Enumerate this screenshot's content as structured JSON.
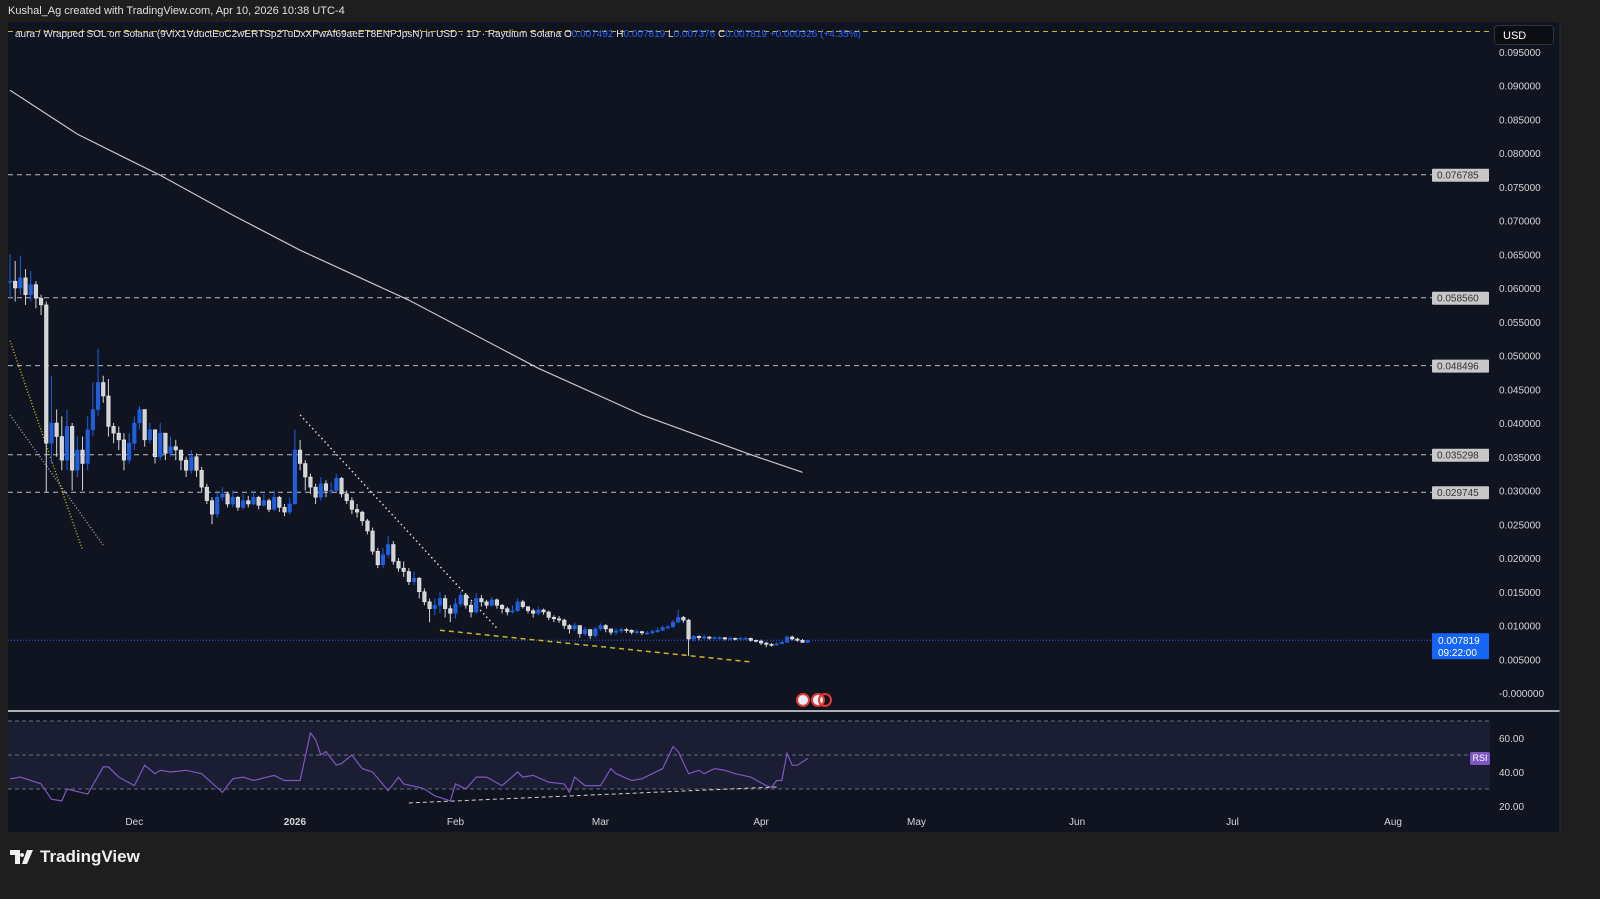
{
  "header": {
    "attribution": "Kushal_Ag created with TradingView.com, Apr 10, 2026 10:38 UTC-4"
  },
  "legend": {
    "symbol": "aura / Wrapped SOL on Solana (9ViX1VductEoC2wERTSp2TuDxXPwAf69aeET8ENPJpsN) in USD · 1D · Raydium Solana",
    "o_label": "O",
    "o": "0.007492",
    "h_label": "H",
    "h": "0.007819",
    "l_label": "L",
    "l": "0.007376",
    "c_label": "C",
    "c": "0.007819",
    "change": "+0.000326 (+4.35%)"
  },
  "currency_button": "USD",
  "footer": {
    "brand": "TradingView"
  },
  "colors": {
    "background": "#0f1420",
    "up": "#1e5fe0",
    "down": "#d4d4d4",
    "rsi": "#7e57c2",
    "accent": "#2962ff",
    "yellow": "#c9b52a"
  },
  "chart_data": {
    "type": "candlestick",
    "timeframe": "1D",
    "first_candle_date": "2025-11-07",
    "close": [
      0.061,
      0.06,
      0.0615,
      0.059,
      0.0605,
      0.0585,
      0.0575,
      0.037,
      0.04,
      0.038,
      0.0345,
      0.0395,
      0.033,
      0.036,
      0.034,
      0.039,
      0.042,
      0.046,
      0.044,
      0.0395,
      0.0385,
      0.0375,
      0.0345,
      0.037,
      0.04,
      0.042,
      0.0375,
      0.039,
      0.035,
      0.0385,
      0.0355,
      0.0365,
      0.036,
      0.0345,
      0.033,
      0.035,
      0.033,
      0.0305,
      0.0285,
      0.0265,
      0.029,
      0.0295,
      0.028,
      0.029,
      0.0275,
      0.0285,
      0.028,
      0.029,
      0.0278,
      0.0285,
      0.0272,
      0.029,
      0.0275,
      0.0268,
      0.028,
      0.036,
      0.034,
      0.032,
      0.0305,
      0.029,
      0.031,
      0.03,
      0.03,
      0.0318,
      0.0295,
      0.0285,
      0.0272,
      0.0268,
      0.0255,
      0.024,
      0.021,
      0.019,
      0.0205,
      0.022,
      0.0195,
      0.0185,
      0.018,
      0.0165,
      0.017,
      0.015,
      0.0135,
      0.0125,
      0.013,
      0.014,
      0.0125,
      0.0118,
      0.0132,
      0.0145,
      0.013,
      0.012,
      0.014,
      0.0135,
      0.013,
      0.0138,
      0.013,
      0.0125,
      0.012,
      0.0122,
      0.0135,
      0.0128,
      0.0122,
      0.0118,
      0.0123,
      0.012,
      0.0112,
      0.011,
      0.0108,
      0.01,
      0.0095,
      0.01,
      0.0088,
      0.0094,
      0.0085,
      0.0095,
      0.01,
      0.0095,
      0.009,
      0.0092,
      0.0094,
      0.0093,
      0.009,
      0.0091,
      0.0089,
      0.0089,
      0.0091,
      0.0093,
      0.0097,
      0.0098,
      0.0105,
      0.0112,
      0.0108,
      0.008,
      0.0084,
      0.0082,
      0.0083,
      0.0081,
      0.0082,
      0.0082,
      0.008,
      0.0081,
      0.008,
      0.0081,
      0.0081,
      0.0078,
      0.0077,
      0.0074,
      0.0072,
      0.0071,
      0.0073,
      0.0075,
      0.0083,
      0.008,
      0.0078,
      0.0075,
      0.007819
    ],
    "high": [
      0.065,
      0.064,
      0.0648,
      0.0628,
      0.0625,
      0.061,
      0.059,
      0.058,
      0.047,
      0.042,
      0.041,
      0.042,
      0.04,
      0.038,
      0.038,
      0.041,
      0.046,
      0.051,
      0.047,
      0.0465,
      0.04,
      0.0395,
      0.0385,
      0.0385,
      0.041,
      0.0425,
      0.042,
      0.04,
      0.039,
      0.04,
      0.0385,
      0.038,
      0.0375,
      0.036,
      0.035,
      0.036,
      0.0355,
      0.0335,
      0.031,
      0.029,
      0.03,
      0.0305,
      0.0298,
      0.03,
      0.0292,
      0.0295,
      0.0292,
      0.03,
      0.0292,
      0.0295,
      0.0288,
      0.03,
      0.0292,
      0.028,
      0.029,
      0.039,
      0.0375,
      0.0345,
      0.0325,
      0.031,
      0.032,
      0.0315,
      0.0312,
      0.0325,
      0.032,
      0.03,
      0.029,
      0.028,
      0.027,
      0.0258,
      0.0245,
      0.0215,
      0.0215,
      0.0232,
      0.0225,
      0.02,
      0.0195,
      0.0185,
      0.018,
      0.0172,
      0.0155,
      0.014,
      0.014,
      0.015,
      0.0145,
      0.013,
      0.014,
      0.015,
      0.0148,
      0.0135,
      0.0148,
      0.0145,
      0.0138,
      0.0142,
      0.014,
      0.0132,
      0.0128,
      0.013,
      0.014,
      0.0138,
      0.0128,
      0.0125,
      0.0128,
      0.0125,
      0.0122,
      0.0115,
      0.0114,
      0.011,
      0.0102,
      0.0104,
      0.01,
      0.0098,
      0.0095,
      0.0098,
      0.0103,
      0.0102,
      0.0095,
      0.0096,
      0.0097,
      0.0096,
      0.0094,
      0.0094,
      0.0092,
      0.0092,
      0.0094,
      0.0097,
      0.01,
      0.0101,
      0.0108,
      0.0123,
      0.0114,
      0.011,
      0.0086,
      0.0085,
      0.0087,
      0.0084,
      0.0084,
      0.0084,
      0.0083,
      0.0083,
      0.0082,
      0.0083,
      0.0083,
      0.0082,
      0.0079,
      0.0079,
      0.0076,
      0.0074,
      0.0075,
      0.0077,
      0.0085,
      0.0085,
      0.0082,
      0.008,
      0.007819
    ],
    "low": [
      0.0585,
      0.058,
      0.059,
      0.0575,
      0.058,
      0.057,
      0.056,
      0.0297,
      0.034,
      0.035,
      0.033,
      0.033,
      0.03,
      0.032,
      0.03,
      0.033,
      0.038,
      0.041,
      0.043,
      0.038,
      0.037,
      0.036,
      0.033,
      0.034,
      0.036,
      0.039,
      0.0365,
      0.037,
      0.034,
      0.0345,
      0.0345,
      0.035,
      0.0345,
      0.033,
      0.032,
      0.0325,
      0.032,
      0.0298,
      0.028,
      0.025,
      0.026,
      0.0285,
      0.0275,
      0.0275,
      0.027,
      0.0272,
      0.0275,
      0.0278,
      0.0272,
      0.0276,
      0.0268,
      0.027,
      0.0268,
      0.0262,
      0.0265,
      0.0285,
      0.033,
      0.03,
      0.0295,
      0.028,
      0.0285,
      0.029,
      0.0295,
      0.0298,
      0.029,
      0.028,
      0.0265,
      0.026,
      0.0248,
      0.0235,
      0.0205,
      0.0185,
      0.0185,
      0.02,
      0.019,
      0.018,
      0.0172,
      0.016,
      0.016,
      0.014,
      0.013,
      0.0105,
      0.0115,
      0.0118,
      0.0112,
      0.0105,
      0.011,
      0.0128,
      0.0125,
      0.0112,
      0.0118,
      0.0128,
      0.0125,
      0.0128,
      0.0125,
      0.0118,
      0.0115,
      0.0118,
      0.012,
      0.0125,
      0.0118,
      0.0112,
      0.0115,
      0.0116,
      0.0108,
      0.0105,
      0.0104,
      0.0095,
      0.0088,
      0.0092,
      0.0082,
      0.0085,
      0.008,
      0.0082,
      0.0092,
      0.009,
      0.0086,
      0.0086,
      0.0089,
      0.0089,
      0.0087,
      0.0087,
      0.0086,
      0.0086,
      0.0087,
      0.0089,
      0.0092,
      0.0094,
      0.0096,
      0.0104,
      0.0104,
      0.0055,
      0.0076,
      0.0078,
      0.0079,
      0.0079,
      0.008,
      0.0079,
      0.0078,
      0.0078,
      0.0078,
      0.0079,
      0.0079,
      0.0076,
      0.0075,
      0.0071,
      0.0068,
      0.0069,
      0.007,
      0.0072,
      0.0074,
      0.0078,
      0.0076,
      0.0074,
      0.007376
    ],
    "moving_average": {
      "dates": [
        "2025-11-07",
        "2025-11-20",
        "2025-12-06",
        "2025-12-20",
        "2026-01-02",
        "2026-01-23",
        "2026-02-17",
        "2026-03-09",
        "2026-03-30",
        "2026-04-09"
      ],
      "values": [
        0.0893,
        0.0828,
        0.0767,
        0.0708,
        0.0656,
        0.0582,
        0.0481,
        0.0412,
        0.0353,
        0.0327
      ]
    },
    "y_axis": {
      "min": -0.0005,
      "max": 0.0975,
      "ticks": [
        "0.095000",
        "0.090000",
        "0.085000",
        "0.080000",
        "0.075000",
        "0.070000",
        "0.065000",
        "0.060000",
        "0.055000",
        "0.050000",
        "0.045000",
        "0.040000",
        "0.035000",
        "0.030000",
        "0.025000",
        "0.020000",
        "0.015000",
        "0.010000",
        "0.005000",
        "-0.000000"
      ]
    },
    "x_axis": {
      "labels": [
        {
          "text": "Dec",
          "date": "2025-12-01"
        },
        {
          "text": "2026",
          "date": "2026-01-01",
          "bold": true
        },
        {
          "text": "Feb",
          "date": "2026-02-01"
        },
        {
          "text": "Mar",
          "date": "2026-03-01"
        },
        {
          "text": "Apr",
          "date": "2026-04-01"
        },
        {
          "text": "May",
          "date": "2026-05-01"
        },
        {
          "text": "Jun",
          "date": "2026-06-01"
        },
        {
          "text": "Jul",
          "date": "2026-07-01"
        },
        {
          "text": "Aug",
          "date": "2026-08-01"
        }
      ]
    },
    "horizontal_levels": [
      {
        "value": 0.076785,
        "label": "0.076785"
      },
      {
        "value": 0.05856,
        "label": "0.058560"
      },
      {
        "value": 0.048496,
        "label": "0.048496"
      },
      {
        "value": 0.035298,
        "label": "0.035298"
      },
      {
        "value": 0.029745,
        "label": "0.029745"
      }
    ],
    "top_yellow_level": 0.098,
    "last_price": {
      "value": 0.007819,
      "label": "0.007819",
      "countdown": "09:22:00"
    },
    "drawings": [
      {
        "style": "dotted-white",
        "from": [
          "2026-01-02",
          0.0412
        ],
        "to": [
          "2026-02-09",
          0.0096
        ]
      },
      {
        "style": "dashed-yellow",
        "from": [
          "2026-01-29",
          0.0093
        ],
        "to": [
          "2026-03-30",
          0.0046
        ]
      },
      {
        "style": "dotted-yellow",
        "from": [
          "2025-11-07",
          0.0522
        ],
        "to": [
          "2025-11-21",
          0.0212
        ]
      },
      {
        "style": "dotted-gray",
        "from": [
          "2025-11-07",
          0.0412
        ],
        "to": [
          "2025-11-25",
          0.0219
        ]
      }
    ],
    "rsi": {
      "label": "RSI",
      "ticks": [
        "60.00",
        "40.00",
        "20.00"
      ],
      "bands": [
        70,
        50,
        30
      ],
      "dates": [
        "2025-11-07",
        "2025-11-09",
        "2025-11-13",
        "2025-11-15",
        "2025-11-17",
        "2025-11-18",
        "2025-11-22",
        "2025-11-25",
        "2025-11-26",
        "2025-11-28",
        "2025-12-01",
        "2025-12-03",
        "2025-12-05",
        "2025-12-06",
        "2025-12-08",
        "2025-12-11",
        "2025-12-14",
        "2025-12-18",
        "2025-12-20",
        "2025-12-22",
        "2025-12-24",
        "2025-12-28",
        "2025-12-30",
        "2026-01-02",
        "2026-01-04",
        "2026-01-05",
        "2026-01-06",
        "2026-01-07",
        "2026-01-09",
        "2026-01-10",
        "2026-01-12",
        "2026-01-14",
        "2026-01-16",
        "2026-01-19",
        "2026-01-21",
        "2026-01-22",
        "2026-01-25",
        "2026-01-26",
        "2026-01-28",
        "2026-01-31",
        "2026-02-01",
        "2026-02-03",
        "2026-02-05",
        "2026-02-07",
        "2026-02-10",
        "2026-02-13",
        "2026-02-14",
        "2026-02-16",
        "2026-02-19",
        "2026-02-22",
        "2026-02-23",
        "2026-02-24",
        "2026-02-26",
        "2026-03-01",
        "2026-03-03",
        "2026-03-04",
        "2026-03-07",
        "2026-03-09",
        "2026-03-13",
        "2026-03-15",
        "2026-03-16",
        "2026-03-18",
        "2026-03-20",
        "2026-03-21",
        "2026-03-23",
        "2026-03-25",
        "2026-03-27",
        "2026-03-30",
        "2026-04-02",
        "2026-04-03",
        "2026-04-04",
        "2026-04-05",
        "2026-04-06",
        "2026-04-07",
        "2026-04-08",
        "2026-04-10"
      ],
      "values": [
        36,
        37,
        33,
        24,
        23,
        30,
        27,
        43,
        43,
        37,
        32,
        44,
        39,
        41,
        40,
        41,
        39,
        28,
        36,
        37,
        35,
        38,
        35,
        35,
        63,
        59,
        50,
        52,
        44,
        45,
        50,
        42,
        40,
        29,
        37,
        33,
        31,
        30,
        26,
        23,
        33,
        30,
        37,
        37,
        32,
        40,
        37,
        38,
        34,
        33,
        28,
        37,
        32,
        32,
        42,
        39,
        35,
        36,
        42,
        55,
        52,
        39,
        41,
        39,
        42,
        41,
        39,
        37,
        32,
        31,
        35,
        35,
        51,
        44,
        44,
        48
      ],
      "trendline": {
        "from": [
          "2026-01-23",
          21.8
        ],
        "to": [
          "2026-04-04",
          31.2
        ]
      }
    }
  }
}
